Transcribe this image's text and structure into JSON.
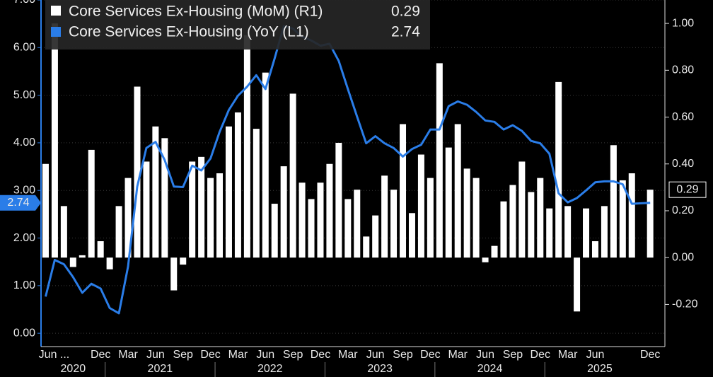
{
  "chart_data": {
    "type": "bar-line",
    "categories": [
      "Jun ...",
      null,
      null,
      null,
      null,
      null,
      "Dec",
      null,
      null,
      "Mar",
      null,
      null,
      "Jun",
      null,
      null,
      "Sep",
      null,
      null,
      "Dec",
      null,
      null,
      "Mar",
      null,
      null,
      "Jun",
      null,
      null,
      "Sep",
      null,
      null,
      "Dec",
      null,
      null,
      "Mar",
      null,
      null,
      "Jun",
      null,
      null,
      "Sep",
      null,
      null,
      "Dec",
      null,
      null,
      "Mar",
      null,
      null,
      "Jun",
      null,
      null,
      "Sep",
      null,
      null,
      "Dec",
      null,
      null,
      "Mar",
      null,
      null,
      "Jun",
      null,
      null,
      null,
      null,
      null,
      "Dec"
    ],
    "x_groups": [
      "2020",
      "2021",
      "2022",
      "2023",
      "2024",
      "2025"
    ],
    "series": [
      {
        "name": "Core Services Ex-Housing (MoM) (R1)",
        "type": "bar",
        "axis": "y2",
        "color": "#ffffff",
        "values": [
          0.4,
          1.0,
          0.22,
          -0.04,
          0.01,
          0.46,
          0.07,
          -0.05,
          0.22,
          0.34,
          0.73,
          0.41,
          0.56,
          0.51,
          -0.14,
          -0.03,
          0.41,
          0.43,
          0.34,
          0.36,
          0.56,
          0.62,
          0.95,
          0.55,
          0.79,
          0.23,
          0.39,
          0.7,
          0.32,
          0.25,
          0.32,
          0.4,
          0.49,
          0.25,
          0.29,
          0.09,
          0.18,
          0.35,
          0.29,
          0.57,
          0.19,
          0.44,
          0.34,
          0.83,
          0.47,
          0.57,
          0.38,
          0.34,
          -0.02,
          0.05,
          0.24,
          0.31,
          0.41,
          0.28,
          0.34,
          0.21,
          0.75,
          0.22,
          -0.23,
          0.21,
          0.07,
          0.22,
          0.48,
          0.33,
          0.36,
          null,
          0.29
        ]
      },
      {
        "name": "Core Services Ex-Housing (YoY (L1)",
        "type": "line",
        "axis": "y",
        "color": "#2a7de8",
        "values": [
          0.77,
          1.54,
          1.45,
          1.18,
          0.85,
          1.04,
          0.94,
          0.53,
          0.42,
          1.4,
          3.08,
          3.89,
          4.02,
          3.64,
          3.08,
          3.07,
          3.52,
          3.42,
          3.67,
          4.23,
          4.69,
          4.99,
          5.18,
          5.42,
          5.13,
          5.77,
          6.45,
          6.4,
          6.23,
          6.15,
          6.04,
          6.08,
          5.72,
          5.13,
          4.55,
          3.99,
          4.14,
          3.99,
          3.89,
          3.71,
          3.87,
          3.96,
          4.28,
          4.28,
          4.77,
          4.87,
          4.8,
          4.65,
          4.47,
          4.44,
          4.28,
          4.37,
          4.25,
          4.04,
          3.99,
          3.77,
          2.94,
          2.75,
          2.84,
          3.0,
          3.17,
          3.19,
          3.19,
          3.13,
          2.72,
          2.73,
          2.74
        ]
      }
    ],
    "ylim": [
      -0.28,
      7.0
    ],
    "yticks": [
      {
        "value": 0,
        "label": "0.00"
      },
      {
        "value": 1,
        "label": "1.00"
      },
      {
        "value": 2,
        "label": "2.00"
      },
      {
        "value": 3,
        "label": "3.00"
      },
      {
        "value": 4,
        "label": "4.00"
      },
      {
        "value": 5,
        "label": "5.00"
      },
      {
        "value": 6,
        "label": "6.00"
      },
      {
        "value": 7,
        "label": "7.00"
      }
    ],
    "y2lim": [
      -0.38,
      1.1
    ],
    "y2ticks": [
      {
        "value": -0.2,
        "label": "-0.20"
      },
      {
        "value": 0,
        "label": "0.00"
      },
      {
        "value": 0.2,
        "label": "0.20"
      },
      {
        "value": 0.4,
        "label": "0.40"
      },
      {
        "value": 0.6,
        "label": "0.60"
      },
      {
        "value": 0.8,
        "label": "0.80"
      },
      {
        "value": 1,
        "label": "1.00"
      }
    ],
    "grid": true,
    "legend": "top-left"
  }
}
